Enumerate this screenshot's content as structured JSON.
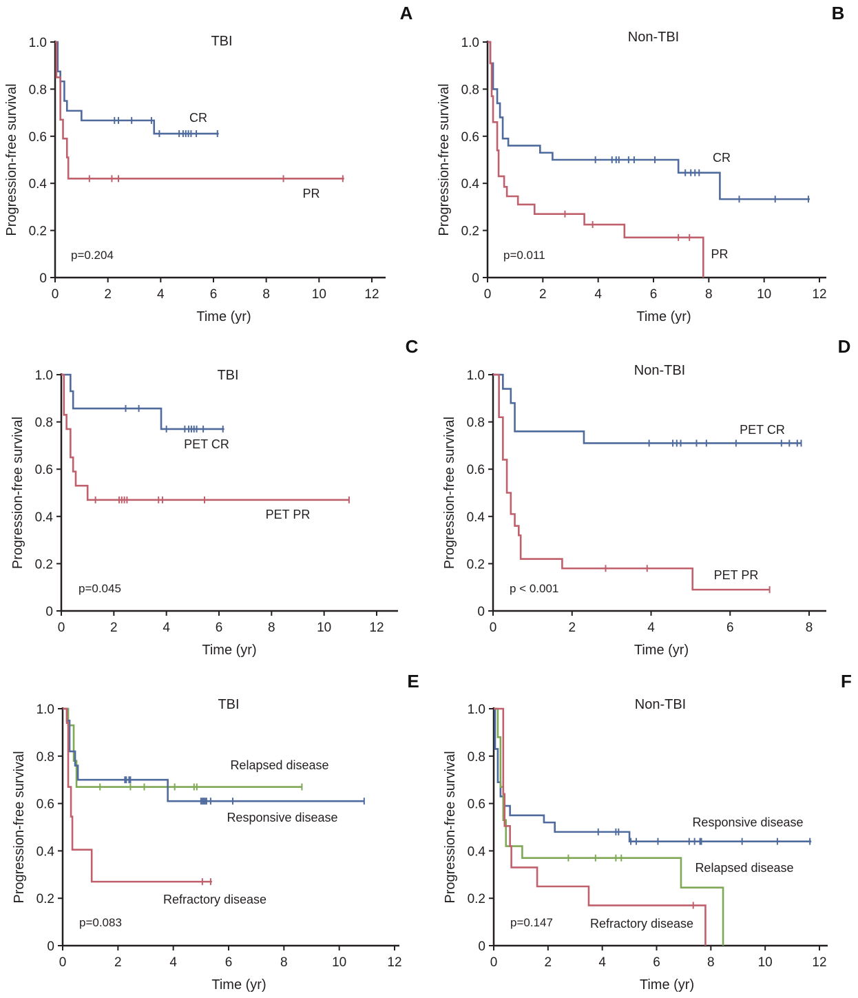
{
  "figure": {
    "colors": {
      "blue": "#4f6a9c",
      "red": "#c0606c",
      "green": "#7fa956",
      "axis": "#231f20"
    }
  },
  "chart_data": [
    {
      "id": "A",
      "letter": "A",
      "type": "line",
      "subtype": "kaplan-meier",
      "title": "TBI",
      "xlabel": "Time (yr)",
      "ylabel": "Progression-free survival",
      "xlim": [
        0,
        12
      ],
      "ylim": [
        0,
        1.0
      ],
      "xticks": [
        "0",
        "2",
        "4",
        "6",
        "8",
        "10",
        "12"
      ],
      "yticks": [
        "0",
        "0.2",
        "0.4",
        "0.6",
        "0.8",
        "1.0"
      ],
      "pvalue": "p=0.204",
      "series": [
        {
          "name": "CR",
          "color": "blue",
          "label": "CR",
          "steps": [
            [
              0,
              1.0
            ],
            [
              0.1,
              0.875
            ],
            [
              0.2,
              0.833
            ],
            [
              0.35,
              0.75
            ],
            [
              0.45,
              0.708
            ],
            [
              1.0,
              0.667
            ],
            [
              3.75,
              0.611
            ],
            [
              6.2,
              0.611
            ]
          ],
          "censored": [
            2.25,
            2.4,
            2.9,
            3.65,
            3.95,
            4.7,
            4.85,
            4.95,
            5.05,
            5.15,
            5.35,
            6.15
          ]
        },
        {
          "name": "PR",
          "color": "red",
          "label": "PR",
          "steps": [
            [
              0,
              1.0
            ],
            [
              0.05,
              0.85
            ],
            [
              0.2,
              0.67
            ],
            [
              0.3,
              0.59
            ],
            [
              0.45,
              0.51
            ],
            [
              0.5,
              0.42
            ],
            [
              10.95,
              0.42
            ]
          ],
          "censored": [
            1.3,
            2.15,
            2.4,
            8.65,
            10.9
          ]
        }
      ]
    },
    {
      "id": "B",
      "letter": "B",
      "type": "line",
      "subtype": "kaplan-meier",
      "title": "Non-TBI",
      "xlabel": "Time (yr)",
      "ylabel": "Progression-free survival",
      "xlim": [
        0,
        12
      ],
      "ylim": [
        0,
        1.0
      ],
      "xticks": [
        "0",
        "2",
        "4",
        "6",
        "8",
        "10",
        "12"
      ],
      "yticks": [
        "0",
        "0.2",
        "0.4",
        "0.6",
        "0.8",
        "1.0"
      ],
      "pvalue": "p=0.011",
      "series": [
        {
          "name": "CR",
          "color": "blue",
          "label": "CR",
          "steps": [
            [
              0,
              1.0
            ],
            [
              0.1,
              0.91
            ],
            [
              0.2,
              0.8
            ],
            [
              0.35,
              0.74
            ],
            [
              0.45,
              0.68
            ],
            [
              0.55,
              0.59
            ],
            [
              0.75,
              0.56
            ],
            [
              1.9,
              0.53
            ],
            [
              2.35,
              0.5
            ],
            [
              6.9,
              0.445
            ],
            [
              8.4,
              0.333
            ],
            [
              11.65,
              0.333
            ]
          ],
          "censored": [
            3.9,
            4.5,
            4.65,
            4.75,
            5.1,
            5.3,
            6.05,
            7.15,
            7.35,
            7.5,
            7.65,
            9.1,
            10.4,
            11.6
          ]
        },
        {
          "name": "PR",
          "color": "red",
          "label": "PR",
          "steps": [
            [
              0,
              1.0
            ],
            [
              0.1,
              0.91
            ],
            [
              0.15,
              0.77
            ],
            [
              0.2,
              0.66
            ],
            [
              0.35,
              0.54
            ],
            [
              0.4,
              0.43
            ],
            [
              0.6,
              0.385
            ],
            [
              0.7,
              0.345
            ],
            [
              1.1,
              0.31
            ],
            [
              1.7,
              0.27
            ],
            [
              3.5,
              0.225
            ],
            [
              4.95,
              0.17
            ],
            [
              7.8,
              0.0
            ]
          ],
          "censored": [
            2.8,
            3.8,
            6.9,
            7.3
          ]
        }
      ]
    },
    {
      "id": "C",
      "letter": "C",
      "type": "line",
      "subtype": "kaplan-meier",
      "title": "TBI",
      "xlabel": "Time (yr)",
      "ylabel": "Progression-free survival",
      "xlim": [
        0,
        12
      ],
      "ylim": [
        0,
        1.0
      ],
      "xticks": [
        "0",
        "2",
        "4",
        "6",
        "8",
        "10",
        "12"
      ],
      "yticks": [
        "0",
        "0.2",
        "0.4",
        "0.6",
        "0.8",
        "1.0"
      ],
      "pvalue": "p=0.045",
      "series": [
        {
          "name": "PET CR",
          "color": "blue",
          "label": "PET CR",
          "steps": [
            [
              0,
              1.0
            ],
            [
              0.35,
              0.93
            ],
            [
              0.45,
              0.857
            ],
            [
              3.8,
              0.77
            ],
            [
              6.2,
              0.77
            ]
          ],
          "censored": [
            2.45,
            2.95,
            4.0,
            4.7,
            4.85,
            4.95,
            5.05,
            5.15,
            5.4,
            6.15
          ]
        },
        {
          "name": "PET PR",
          "color": "red",
          "label": "PET PR",
          "steps": [
            [
              0,
              1.0
            ],
            [
              0.1,
              0.83
            ],
            [
              0.2,
              0.77
            ],
            [
              0.35,
              0.65
            ],
            [
              0.45,
              0.59
            ],
            [
              0.55,
              0.53
            ],
            [
              1.0,
              0.47
            ],
            [
              10.95,
              0.47
            ]
          ],
          "censored": [
            1.3,
            2.2,
            2.3,
            2.4,
            2.5,
            3.7,
            3.85,
            5.45,
            10.95
          ]
        }
      ]
    },
    {
      "id": "D",
      "letter": "D",
      "type": "line",
      "subtype": "kaplan-meier",
      "title": "Non-TBI",
      "xlabel": "Time (yr)",
      "ylabel": "Progression-free survival",
      "xlim": [
        0,
        8
      ],
      "ylim": [
        0,
        1.0
      ],
      "xticks": [
        "0",
        "2",
        "4",
        "6",
        "8"
      ],
      "yticks": [
        "0",
        "0.2",
        "0.4",
        "0.6",
        "0.8",
        "1.0"
      ],
      "pvalue": "p < 0.001",
      "series": [
        {
          "name": "PET CR",
          "color": "blue",
          "label": "PET CR",
          "steps": [
            [
              0,
              1.0
            ],
            [
              0.25,
              0.94
            ],
            [
              0.45,
              0.88
            ],
            [
              0.55,
              0.76
            ],
            [
              2.3,
              0.71
            ],
            [
              7.8,
              0.71
            ]
          ],
          "censored": [
            3.95,
            4.55,
            4.65,
            4.75,
            5.15,
            5.4,
            6.15,
            7.3,
            7.5,
            7.7,
            7.8
          ]
        },
        {
          "name": "PET PR",
          "color": "red",
          "label": "PET PR",
          "steps": [
            [
              0,
              1.0
            ],
            [
              0.15,
              0.82
            ],
            [
              0.25,
              0.64
            ],
            [
              0.35,
              0.5
            ],
            [
              0.45,
              0.41
            ],
            [
              0.55,
              0.36
            ],
            [
              0.65,
              0.32
            ],
            [
              0.7,
              0.22
            ],
            [
              1.75,
              0.18
            ],
            [
              5.05,
              0.09
            ],
            [
              7.0,
              0.09
            ]
          ],
          "censored": [
            2.85,
            3.9,
            7.0
          ]
        }
      ]
    },
    {
      "id": "E",
      "letter": "E",
      "type": "line",
      "subtype": "kaplan-meier",
      "title": "TBI",
      "xlabel": "Time (yr)",
      "ylabel": "Progression-free survival",
      "xlim": [
        0,
        12
      ],
      "ylim": [
        0,
        1.0
      ],
      "xticks": [
        "0",
        "2",
        "4",
        "6",
        "8",
        "10",
        "12"
      ],
      "yticks": [
        "0",
        "0.2",
        "0.4",
        "0.6",
        "0.8",
        "1.0"
      ],
      "pvalue": "p=0.083",
      "series": [
        {
          "name": "Relapsed disease",
          "color": "green",
          "label": "Relapsed disease",
          "steps": [
            [
              0,
              1.0
            ],
            [
              0.2,
              0.93
            ],
            [
              0.4,
              0.78
            ],
            [
              0.5,
              0.67
            ],
            [
              8.65,
              0.67
            ]
          ],
          "censored": [
            1.35,
            2.45,
            2.95,
            4.05,
            4.75,
            4.85,
            8.65
          ]
        },
        {
          "name": "Responsive disease",
          "color": "blue",
          "label": "Responsive disease",
          "steps": [
            [
              0,
              1.0
            ],
            [
              0.15,
              0.95
            ],
            [
              0.25,
              0.82
            ],
            [
              0.45,
              0.76
            ],
            [
              0.55,
              0.7
            ],
            [
              3.8,
              0.61
            ],
            [
              10.9,
              0.61
            ]
          ],
          "censored": [
            2.25,
            2.3,
            2.4,
            2.45,
            5.0,
            5.05,
            5.1,
            5.15,
            5.2,
            5.35,
            6.15,
            10.9
          ]
        },
        {
          "name": "Refractory disease",
          "color": "red",
          "label": "Refractory disease",
          "steps": [
            [
              0,
              1.0
            ],
            [
              0.15,
              0.94
            ],
            [
              0.2,
              0.67
            ],
            [
              0.3,
              0.545
            ],
            [
              0.35,
              0.405
            ],
            [
              1.05,
              0.27
            ],
            [
              5.4,
              0.27
            ]
          ],
          "censored": [
            5.05,
            5.35
          ]
        }
      ]
    },
    {
      "id": "F",
      "letter": "F",
      "type": "line",
      "subtype": "kaplan-meier",
      "title": "Non-TBI",
      "xlabel": "Time (yr)",
      "ylabel": "Progression-free survival",
      "xlim": [
        0,
        12
      ],
      "ylim": [
        0,
        1.0
      ],
      "xticks": [
        "0",
        "2",
        "4",
        "6",
        "8",
        "10",
        "12"
      ],
      "yticks": [
        "0",
        "0.2",
        "0.4",
        "0.6",
        "0.8",
        "1.0"
      ],
      "pvalue": "p=0.147",
      "series": [
        {
          "name": "Responsive disease",
          "color": "blue",
          "label": "Responsive disease",
          "steps": [
            [
              0,
              1.0
            ],
            [
              0.05,
              0.83
            ],
            [
              0.15,
              0.69
            ],
            [
              0.25,
              0.63
            ],
            [
              0.35,
              0.59
            ],
            [
              0.6,
              0.55
            ],
            [
              1.85,
              0.52
            ],
            [
              2.25,
              0.48
            ],
            [
              5.0,
              0.44
            ],
            [
              11.7,
              0.44
            ]
          ],
          "censored": [
            3.85,
            4.5,
            4.6,
            5.05,
            5.25,
            6.05,
            7.2,
            7.4,
            7.6,
            7.65,
            9.15,
            10.45,
            11.65
          ]
        },
        {
          "name": "Relapsed disease",
          "color": "green",
          "label": "Relapsed disease",
          "steps": [
            [
              0,
              1.0
            ],
            [
              0.15,
              0.88
            ],
            [
              0.25,
              0.67
            ],
            [
              0.35,
              0.53
            ],
            [
              0.45,
              0.42
            ],
            [
              1.05,
              0.37
            ],
            [
              6.9,
              0.245
            ],
            [
              8.45,
              0.0
            ]
          ],
          "censored": [
            2.75,
            3.75,
            4.5,
            4.7
          ]
        },
        {
          "name": "Refractory disease",
          "color": "red",
          "label": "Refractory disease",
          "steps": [
            [
              0,
              1.0
            ],
            [
              0.35,
              0.64
            ],
            [
              0.4,
              0.505
            ],
            [
              0.6,
              0.42
            ],
            [
              0.65,
              0.33
            ],
            [
              1.6,
              0.25
            ],
            [
              3.5,
              0.17
            ],
            [
              7.8,
              0.0
            ]
          ],
          "censored": [
            7.35
          ]
        }
      ]
    }
  ]
}
